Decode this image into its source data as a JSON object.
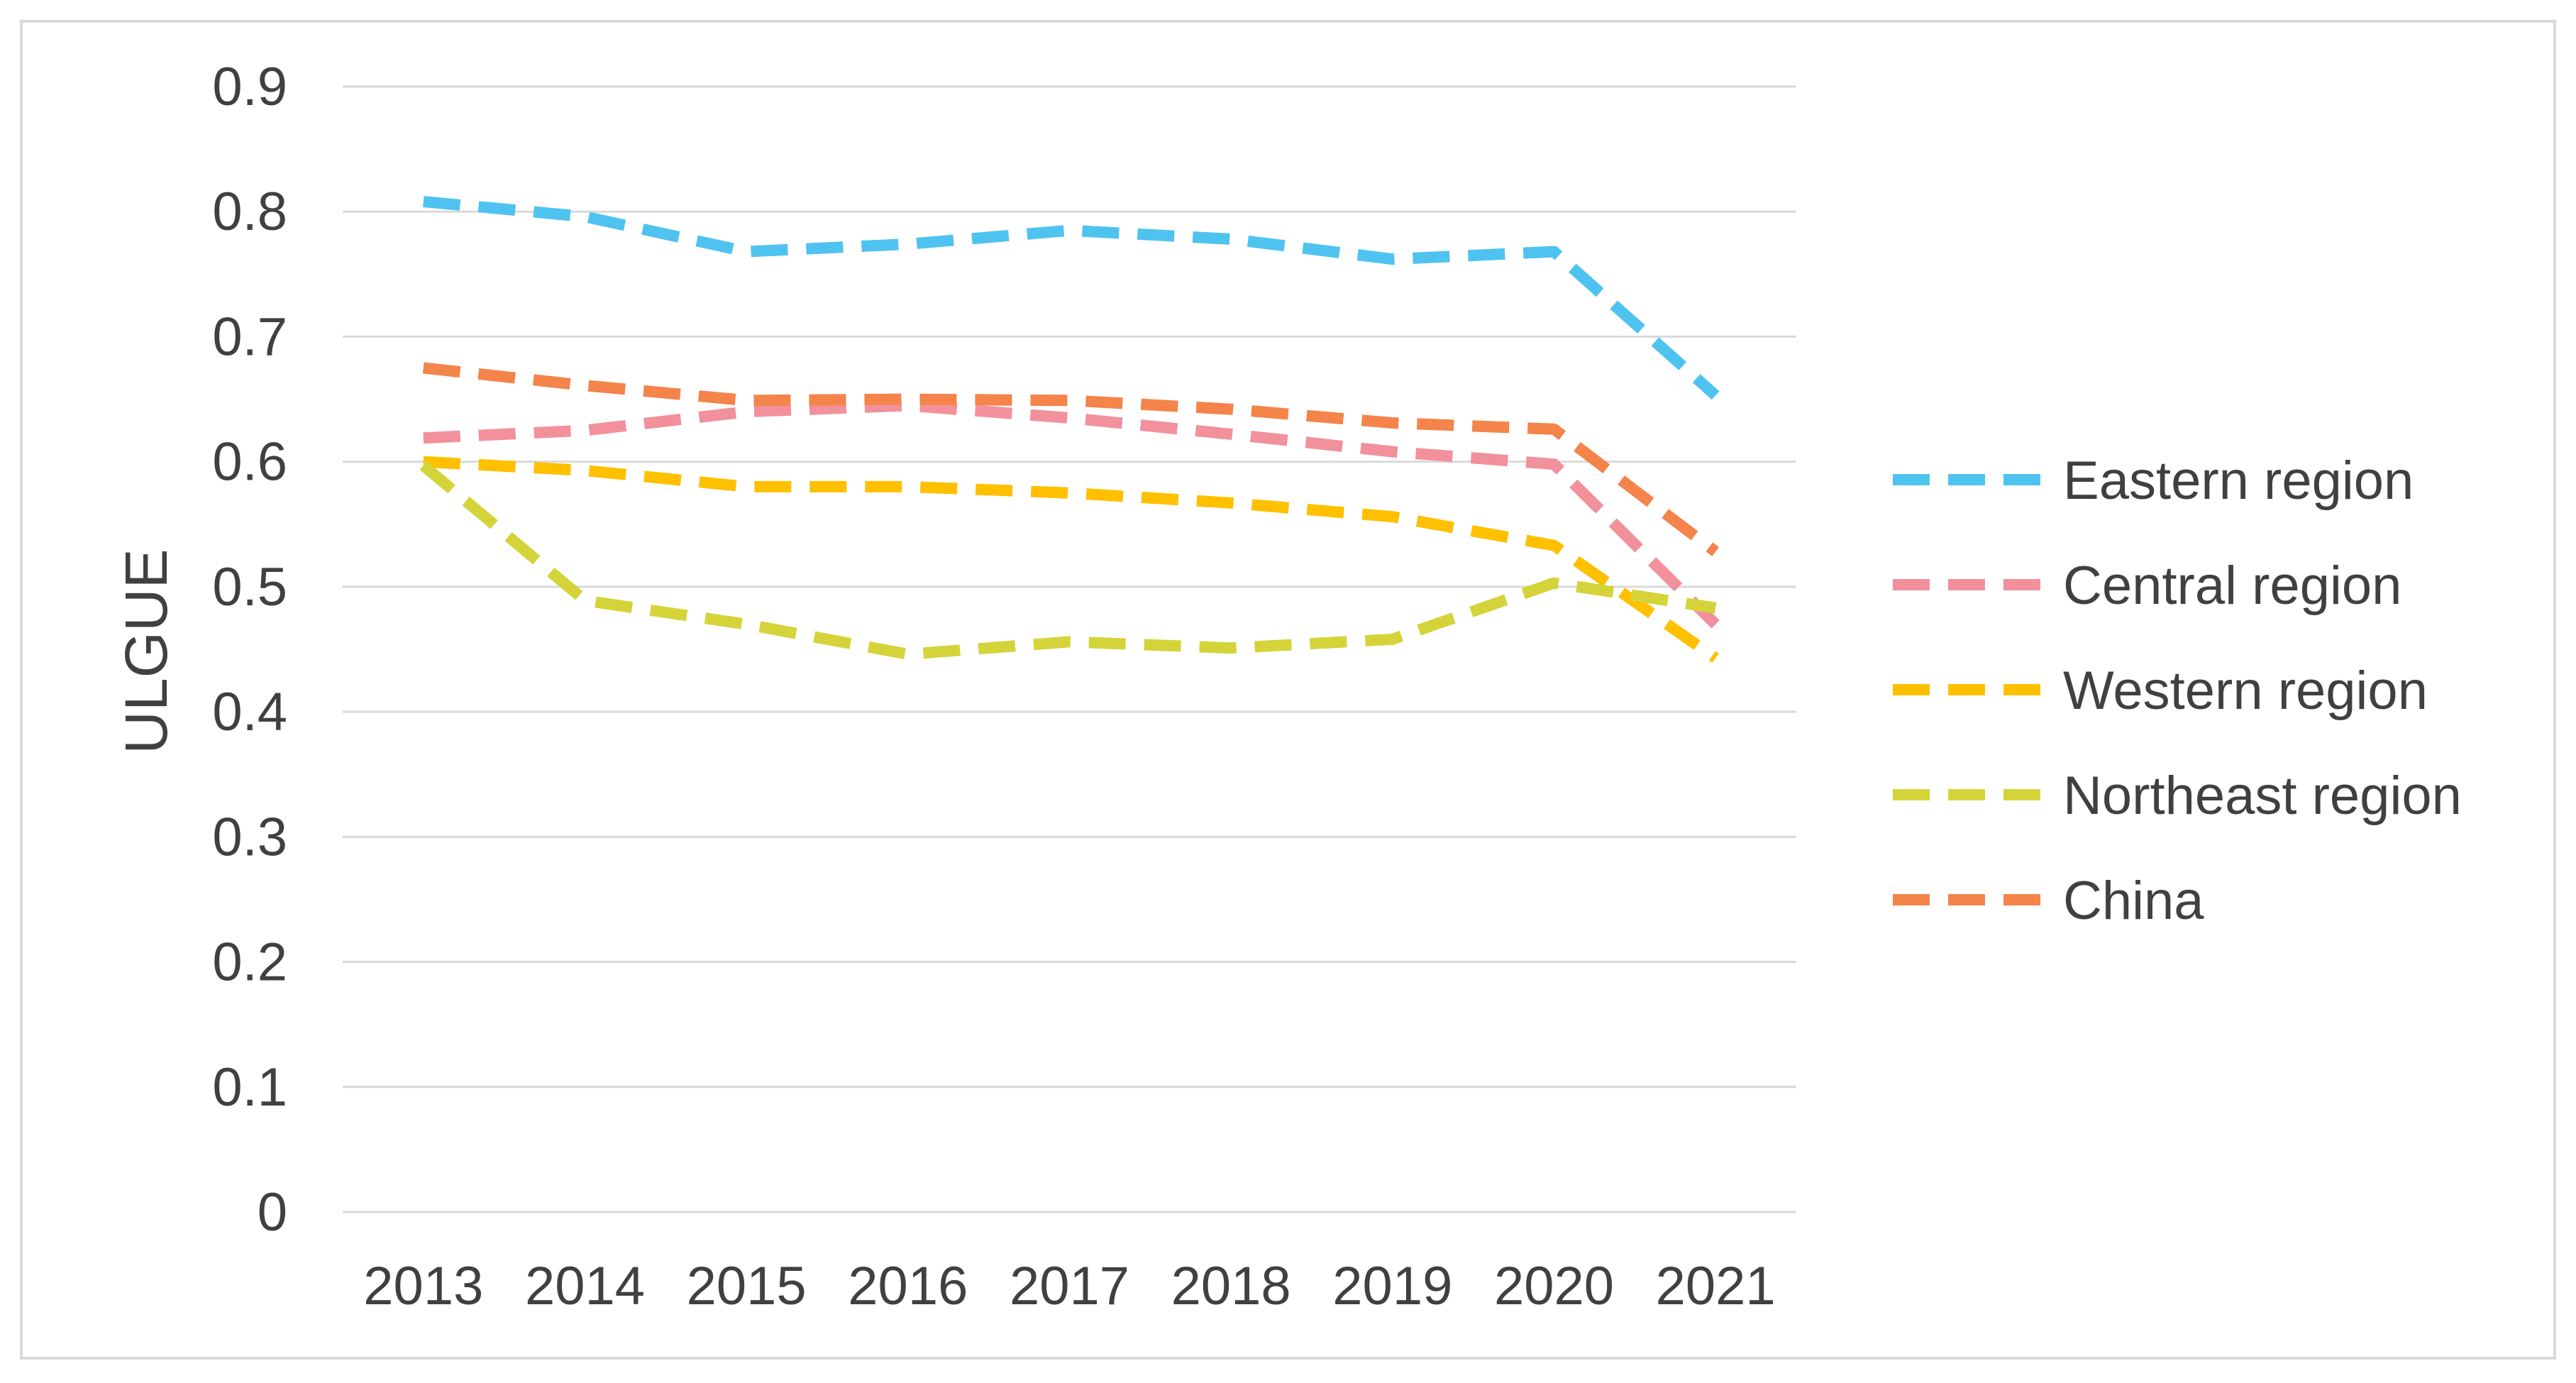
{
  "chart_data": {
    "type": "line",
    "title": "",
    "xlabel": "",
    "ylabel": "ULGUE",
    "ylim": [
      0,
      0.9
    ],
    "yticks": [
      "0",
      "0.1",
      "0.2",
      "0.3",
      "0.4",
      "0.5",
      "0.6",
      "0.7",
      "0.8",
      "0.9"
    ],
    "grid": true,
    "legend_position": "right",
    "categories": [
      "2013",
      "2014",
      "2015",
      "2016",
      "2017",
      "2018",
      "2019",
      "2020",
      "2021"
    ],
    "series": [
      {
        "name": "Eastern region",
        "color": "#4FC3F0",
        "values": [
          0.808,
          0.796,
          0.768,
          0.774,
          0.785,
          0.778,
          0.762,
          0.768,
          0.653
        ]
      },
      {
        "name": "Central region",
        "color": "#F2909C",
        "values": [
          0.619,
          0.625,
          0.64,
          0.645,
          0.635,
          0.622,
          0.608,
          0.598,
          0.47
        ]
      },
      {
        "name": "Western region",
        "color": "#FFC000",
        "values": [
          0.6,
          0.593,
          0.58,
          0.58,
          0.575,
          0.567,
          0.556,
          0.533,
          0.443
        ]
      },
      {
        "name": "Northeast region",
        "color": "#D4D43A",
        "values": [
          0.597,
          0.489,
          0.47,
          0.446,
          0.456,
          0.451,
          0.458,
          0.503,
          0.483
        ]
      },
      {
        "name": "China",
        "color": "#F4844A",
        "values": [
          0.675,
          0.661,
          0.649,
          0.65,
          0.649,
          0.642,
          0.631,
          0.626,
          0.528
        ]
      }
    ]
  }
}
